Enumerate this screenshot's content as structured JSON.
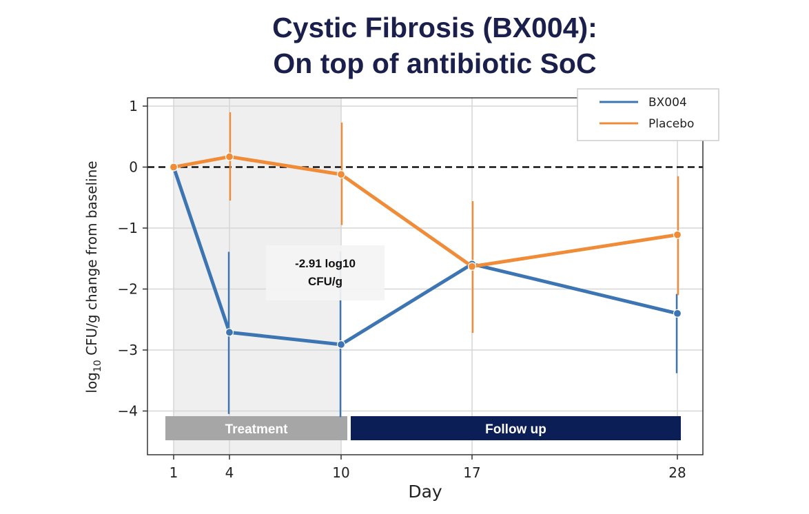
{
  "title_line1": "Cystic Fibrosis (BX004):",
  "title_line2": "On top of antibiotic SoC",
  "chart_data": {
    "type": "line",
    "title": "Cystic Fibrosis (BX004): On top of antibiotic SoC",
    "xlabel": "Day",
    "ylabel": "log10 CFU/g change from baseline",
    "ylabel_main": "log",
    "ylabel_sub": "10",
    "ylabel_rest": " CFU/g change from baseline",
    "x_categories": [
      "1",
      "4",
      "10",
      "17",
      "28"
    ],
    "y_ticks": [
      "1",
      "0",
      "−1",
      "−2",
      "−3",
      "−4"
    ],
    "y_tick_values": [
      1,
      0,
      -1,
      -2,
      -3,
      -4
    ],
    "ylim": [
      -4.6,
      1.1
    ],
    "grid": true,
    "reference_line": 0,
    "legend_position": "top-right",
    "series": [
      {
        "name": "BX004",
        "color": "#3d75b3",
        "x": [
          1,
          4,
          10,
          17,
          28
        ],
        "y": [
          0,
          -2.71,
          -2.91,
          -1.59,
          -2.4
        ],
        "err_low": [
          null,
          -4.05,
          -4.1,
          null,
          -3.38
        ],
        "err_high": [
          null,
          -1.39,
          -1.38,
          null,
          -2.08
        ]
      },
      {
        "name": "Placebo",
        "color": "#f08c37",
        "x": [
          1,
          4,
          10,
          17,
          28
        ],
        "y": [
          0,
          0.17,
          -0.12,
          -1.63,
          -1.11
        ],
        "err_low": [
          null,
          -0.55,
          -0.95,
          -2.72,
          -2.1
        ],
        "err_high": [
          null,
          0.9,
          0.73,
          -0.56,
          -0.15
        ]
      }
    ],
    "annotation": {
      "line1": "-2.91 log10",
      "line2": "CFU/g"
    },
    "phases": [
      {
        "label": "Treatment",
        "color": "#a6a6a6"
      },
      {
        "label": "Follow up",
        "color": "#0b1e55"
      }
    ]
  }
}
